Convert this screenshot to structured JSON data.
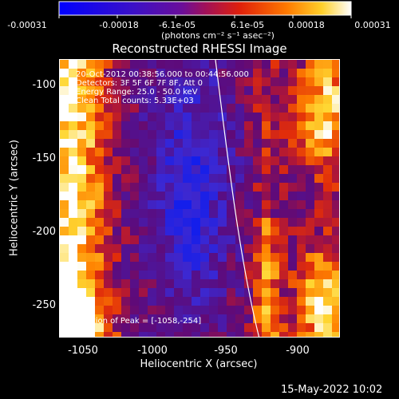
{
  "colorbar": {
    "ticks": [
      "-0.00031",
      "-0.00018",
      "-6.1e-05",
      "6.1e-05",
      "0.00018",
      "0.00031"
    ],
    "units_text": "(photons cm",
    "units_full": "(photons cm⁻² s⁻¹ asec⁻²)",
    "range": [
      -0.00031,
      0.00031
    ]
  },
  "plot": {
    "title": "Reconstructed RHESSI Image",
    "info_lines": [
      "20-Oct-2012 00:38:56.000 to 00:44:56.000",
      "Detectors: 3F 5F 6F 7F 8F, Att 0",
      "Energy Range: 25.0 - 50.0 keV",
      "Clean    Total counts: 5.33E+03"
    ],
    "peak_text": "Position of Peak = [-1058,-254]",
    "xlabel": "Heliocentric X (arcsec)",
    "ylabel": "Heliocentric Y (arcsec)",
    "xticks": [
      "-1050",
      "-1000",
      "-950",
      "-900"
    ],
    "yticks": [
      "-100",
      "-150",
      "-200",
      "-250"
    ],
    "xrange": [
      -1066,
      -936
    ],
    "yrange": [
      -270,
      -84
    ]
  },
  "footer": {
    "timestamp": "15-May-2022 10:02"
  },
  "colors": {
    "background": "#000000",
    "text": "#ffffff",
    "map_low": "#0000ff",
    "map_mid": "#5a10a0",
    "map_high": "#ffffff"
  }
}
